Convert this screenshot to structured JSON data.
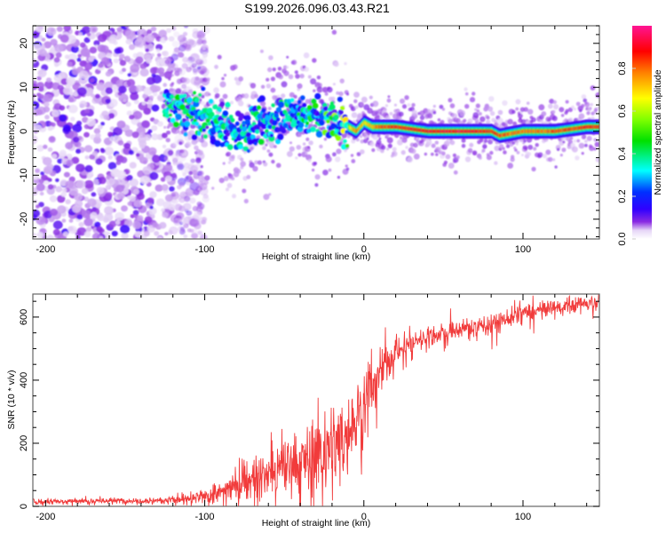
{
  "title": "S199.2026.096.03.43.R21",
  "colors": {
    "snr_line": "#f03030",
    "axis": "#555555",
    "colormap": [
      "#ffffff",
      "#e6d6f7",
      "#8a2be2",
      "#6a00ff",
      "#0000ff",
      "#0080ff",
      "#00ffff",
      "#00ff40",
      "#80ff00",
      "#ffff00",
      "#ff8000",
      "#ff0000",
      "#ff1493"
    ]
  },
  "chart_data": [
    {
      "type": "heatmap",
      "name": "spectrogram",
      "xlabel": "Height of straight line (km)",
      "ylabel": "Frequency (Hz)",
      "xlim": [
        -208,
        148
      ],
      "ylim": [
        -24.5,
        24
      ],
      "xticks": [
        -200,
        -100,
        0,
        100
      ],
      "xtick_labels": [
        "-200",
        "-100",
        "0",
        "100"
      ],
      "yticks": [
        -20,
        -10,
        0,
        10,
        20
      ],
      "ytick_labels": [
        "-20",
        "-10",
        "0",
        "10",
        "20"
      ],
      "colorbar": {
        "label": "Normalized spectral amplitude",
        "range": [
          0,
          1
        ],
        "ticks": [
          0.0,
          0.2,
          0.4,
          0.6,
          0.8
        ],
        "tick_labels": [
          "0.0",
          "0.2",
          "0.4",
          "0.6",
          "0.8"
        ]
      },
      "signal_track": {
        "x": [
          -125,
          -110,
          -100,
          -90,
          -80,
          -70,
          -60,
          -50,
          -40,
          -30,
          -20,
          -10,
          -5,
          0,
          5,
          10,
          20,
          40,
          60,
          80,
          85,
          100,
          120,
          140,
          148
        ],
        "y": [
          6,
          4,
          3,
          2,
          0,
          1,
          2,
          4,
          4,
          3,
          3,
          1,
          0,
          2,
          1,
          1,
          1,
          0,
          0,
          0,
          -1,
          0,
          0,
          1,
          1
        ],
        "amplitude": [
          0.3,
          0.35,
          0.3,
          0.3,
          0.25,
          0.3,
          0.3,
          0.3,
          0.3,
          0.35,
          0.45,
          0.6,
          0.8,
          0.7,
          0.75,
          0.85,
          0.9,
          0.95,
          0.95,
          0.9,
          0.85,
          0.8,
          0.85,
          0.9,
          0.9
        ]
      },
      "noise_region_x": [
        -208,
        -105
      ]
    },
    {
      "type": "line",
      "name": "snr",
      "xlabel": "Height of straight line (km)",
      "ylabel": "SNR (10 * v/v)",
      "xlim": [
        -208,
        148
      ],
      "ylim": [
        0,
        673
      ],
      "xticks": [
        -200,
        -100,
        0,
        100
      ],
      "xtick_labels": [
        "-200",
        "-100",
        "0",
        "100"
      ],
      "yticks": [
        0,
        200,
        400,
        600
      ],
      "ytick_labels": [
        "0",
        "200",
        "400",
        "600"
      ],
      "series": [
        {
          "name": "SNR",
          "x": [
            -208,
            -180,
            -150,
            -120,
            -110,
            -100,
            -90,
            -80,
            -70,
            -60,
            -50,
            -40,
            -30,
            -20,
            -10,
            0,
            10,
            20,
            30,
            40,
            60,
            80,
            100,
            120,
            148
          ],
          "y": [
            15,
            17,
            18,
            20,
            22,
            30,
            45,
            70,
            85,
            100,
            120,
            140,
            160,
            180,
            230,
            320,
            430,
            490,
            520,
            540,
            560,
            580,
            610,
            630,
            650
          ],
          "noise": [
            8,
            8,
            8,
            10,
            12,
            18,
            30,
            45,
            55,
            65,
            75,
            90,
            110,
            120,
            110,
            90,
            60,
            40,
            30,
            25,
            25,
            30,
            25,
            20,
            20
          ]
        }
      ]
    }
  ]
}
